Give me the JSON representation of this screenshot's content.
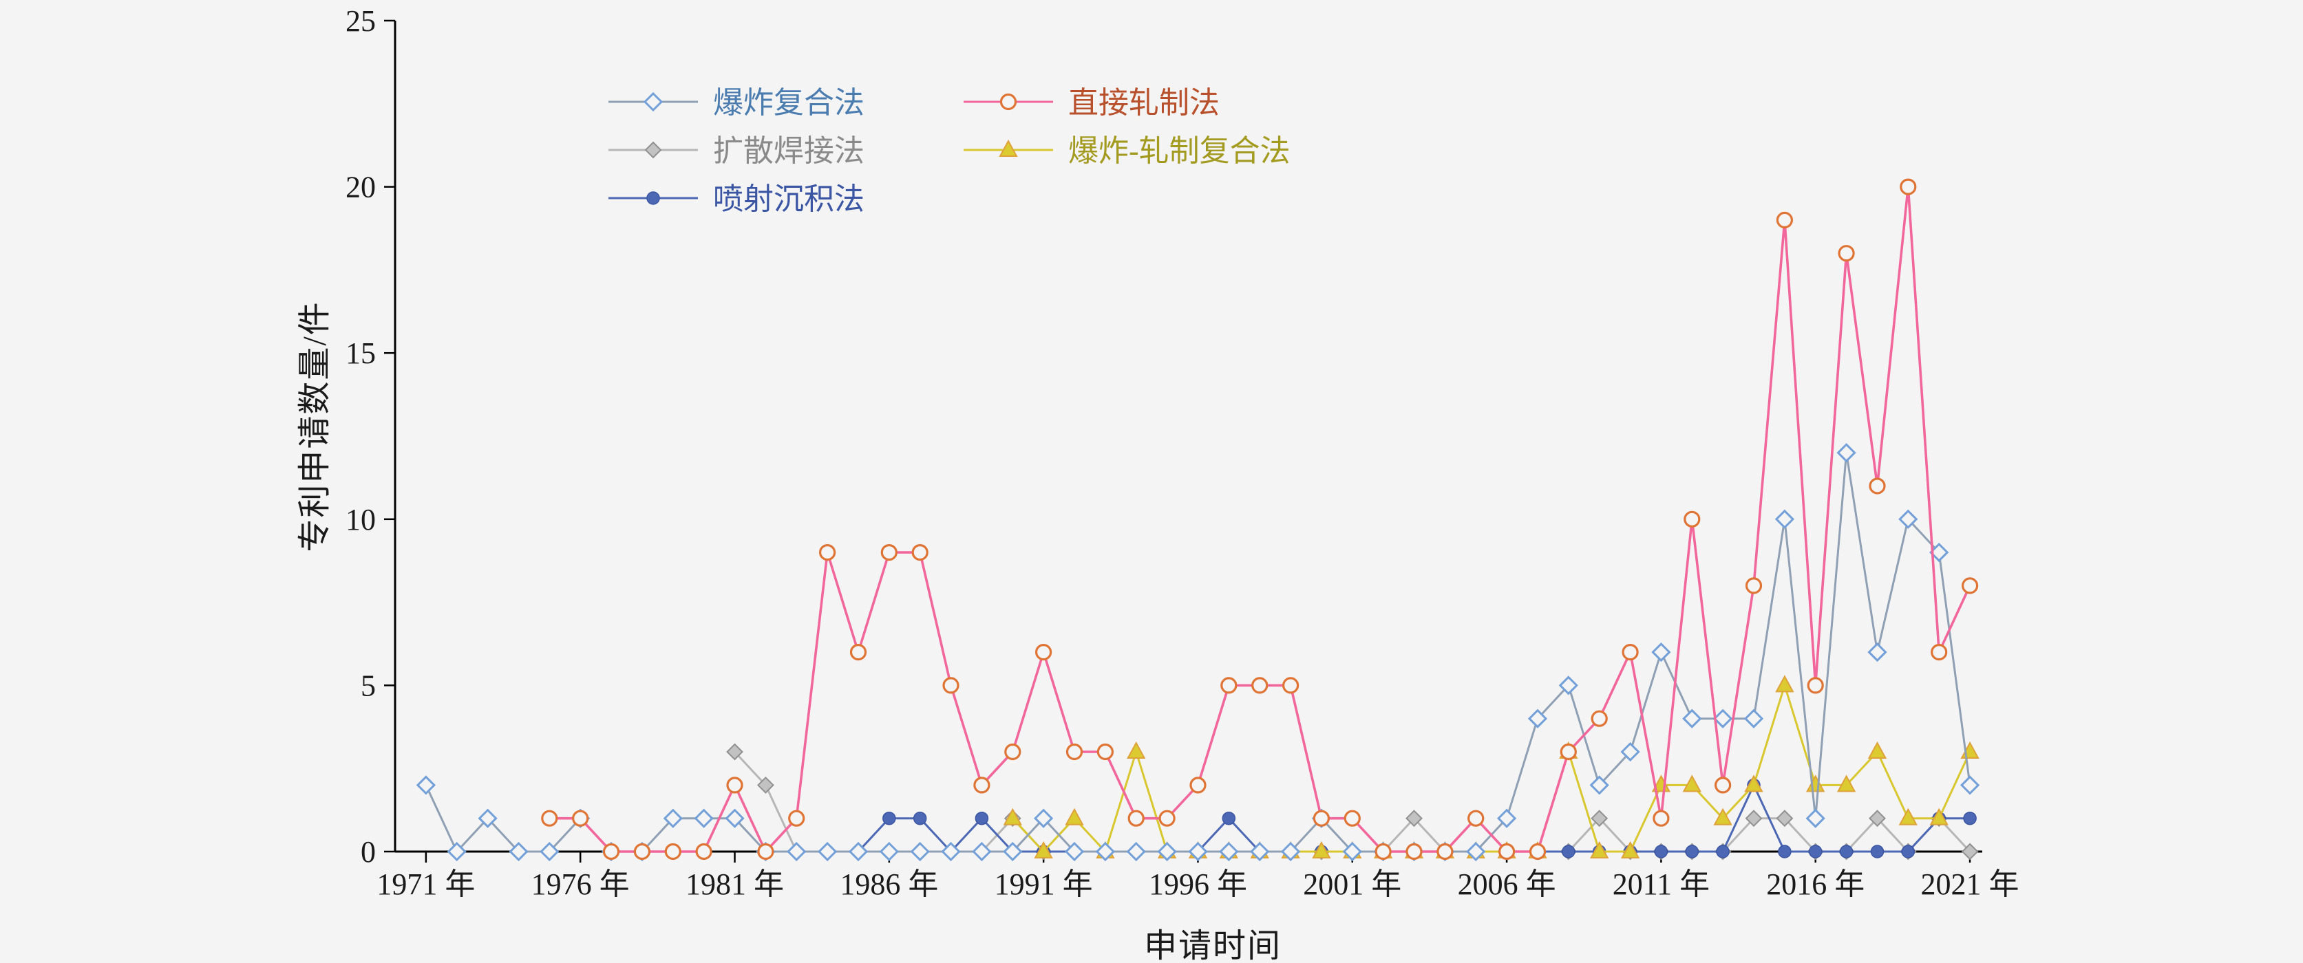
{
  "page": {
    "background": "#f4f4f4",
    "axis_color": "#000000",
    "text_color": "#1a1a1a"
  },
  "chart_data": {
    "type": "line",
    "title": "",
    "xlabel": "申请时间",
    "ylabel": "专利申请数量/件",
    "x_tick_suffix": " 年",
    "x_ticks": [
      1971,
      1976,
      1981,
      1986,
      1991,
      1996,
      2001,
      2006,
      2011,
      2016,
      2021
    ],
    "y_ticks": [
      0,
      5,
      10,
      15,
      20,
      25
    ],
    "xlim": [
      1970,
      2021.4
    ],
    "ylim": [
      0,
      25
    ],
    "grid": false,
    "legend_position": "top-left-inside",
    "years": [
      1971,
      1972,
      1973,
      1974,
      1975,
      1976,
      1977,
      1978,
      1979,
      1980,
      1981,
      1982,
      1983,
      1984,
      1985,
      1986,
      1987,
      1988,
      1989,
      1990,
      1991,
      1992,
      1993,
      1994,
      1995,
      1996,
      1997,
      1998,
      1999,
      2000,
      2001,
      2002,
      2003,
      2004,
      2005,
      2006,
      2007,
      2008,
      2009,
      2010,
      2011,
      2012,
      2013,
      2014,
      2015,
      2016,
      2017,
      2018,
      2019,
      2020,
      2021
    ],
    "series": [
      {
        "id": "explosive-cladding",
        "name": "爆炸复合法",
        "marker": "diamond-open",
        "line_color": "#8fa0b4",
        "marker_color": "#73a0d8",
        "marker_fill": "#f4f4f4",
        "legend_text_color": "#4b7cb0",
        "values": [
          2,
          0,
          1,
          0,
          0,
          1,
          0,
          0,
          1,
          1,
          1,
          0,
          0,
          0,
          0,
          0,
          0,
          0,
          0,
          0,
          1,
          0,
          0,
          0,
          0,
          0,
          0,
          0,
          0,
          1,
          0,
          0,
          0,
          0,
          0,
          1,
          4,
          5,
          2,
          3,
          6,
          4,
          4,
          4,
          10,
          1,
          12,
          6,
          10,
          9,
          2
        ]
      },
      {
        "id": "direct-rolling",
        "name": "直接轧制法",
        "marker": "circle-open",
        "line_color": "#f2679b",
        "marker_color": "#df7434",
        "marker_fill": "#f4f4f4",
        "legend_text_color": "#b8502c",
        "values": [
          null,
          null,
          null,
          null,
          1,
          1,
          0,
          0,
          0,
          0,
          2,
          0,
          1,
          9,
          6,
          9,
          9,
          5,
          2,
          3,
          6,
          3,
          3,
          1,
          1,
          2,
          5,
          5,
          5,
          1,
          1,
          0,
          0,
          0,
          1,
          0,
          0,
          3,
          4,
          6,
          1,
          10,
          2,
          8,
          19,
          5,
          18,
          11,
          20,
          6,
          8
        ]
      },
      {
        "id": "diffusion-welding",
        "name": "扩散焊接法",
        "marker": "diamond-filled",
        "line_color": "#b6b6b6",
        "marker_color": "#909090",
        "marker_fill": "#c2c2c2",
        "legend_text_color": "#8a8a8a",
        "values": [
          null,
          null,
          null,
          null,
          null,
          null,
          null,
          null,
          null,
          null,
          3,
          2,
          0,
          0,
          0,
          0,
          0,
          0,
          0,
          1,
          0,
          0,
          0,
          0,
          0,
          0,
          0,
          0,
          0,
          0,
          0,
          0,
          1,
          0,
          1,
          0,
          0,
          0,
          1,
          0,
          0,
          0,
          0,
          1,
          1,
          0,
          0,
          1,
          0,
          1,
          0
        ]
      },
      {
        "id": "explosive-rolling",
        "name": "爆炸-轧制复合法",
        "marker": "triangle-filled",
        "line_color": "#d8c72e",
        "marker_color": "#dfa23b",
        "marker_fill": "#dbcb30",
        "legend_text_color": "#a39a20",
        "values": [
          null,
          null,
          null,
          null,
          null,
          null,
          null,
          null,
          null,
          null,
          null,
          null,
          null,
          null,
          null,
          null,
          null,
          null,
          null,
          1,
          0,
          1,
          0,
          3,
          0,
          0,
          0,
          0,
          0,
          0,
          0,
          0,
          0,
          0,
          0,
          0,
          0,
          3,
          0,
          0,
          2,
          2,
          1,
          2,
          5,
          2,
          2,
          3,
          1,
          1,
          3
        ]
      },
      {
        "id": "spray-deposition",
        "name": "喷射沉积法",
        "marker": "circle-filled",
        "line_color": "#4c68b4",
        "marker_color": "#3a55a4",
        "marker_fill": "#4c68b4",
        "legend_text_color": "#3a55a4",
        "values": [
          null,
          null,
          null,
          null,
          null,
          null,
          null,
          null,
          null,
          null,
          null,
          null,
          null,
          0,
          0,
          1,
          1,
          0,
          1,
          0,
          0,
          0,
          0,
          0,
          0,
          0,
          1,
          0,
          0,
          0,
          0,
          0,
          0,
          0,
          0,
          0,
          0,
          0,
          0,
          0,
          0,
          0,
          0,
          2,
          0,
          0,
          0,
          0,
          0,
          1,
          1
        ]
      }
    ]
  }
}
